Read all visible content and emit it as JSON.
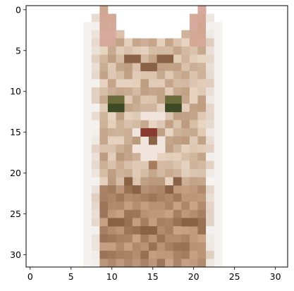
{
  "image": {
    "description_icon": "cat-pixel-image",
    "grid_width": 32,
    "grid_height": 32
  },
  "axes": {
    "x_ticks": [
      "0",
      "5",
      "10",
      "15",
      "20",
      "25",
      "30"
    ],
    "y_ticks": [
      "0",
      "5",
      "10",
      "15",
      "20",
      "25",
      "30"
    ],
    "x_range": [
      -0.5,
      31.5
    ],
    "y_range": [
      -0.5,
      31.5
    ]
  },
  "colors": {
    "background": "#ffffff",
    "axis": "#000000",
    "fur_light": "#e8d5c2",
    "fur_mid": "#c9a486",
    "fur_dark": "#a67d5c",
    "fur_deep": "#8a6245",
    "ear_inner": "#d9aaa0",
    "eye": "#3e4a25",
    "eye_ring": "#6b6b3a",
    "nose": "#8a3a30",
    "muzzle": "#f0e4dc",
    "edge_white": "#f5f3f1"
  }
}
